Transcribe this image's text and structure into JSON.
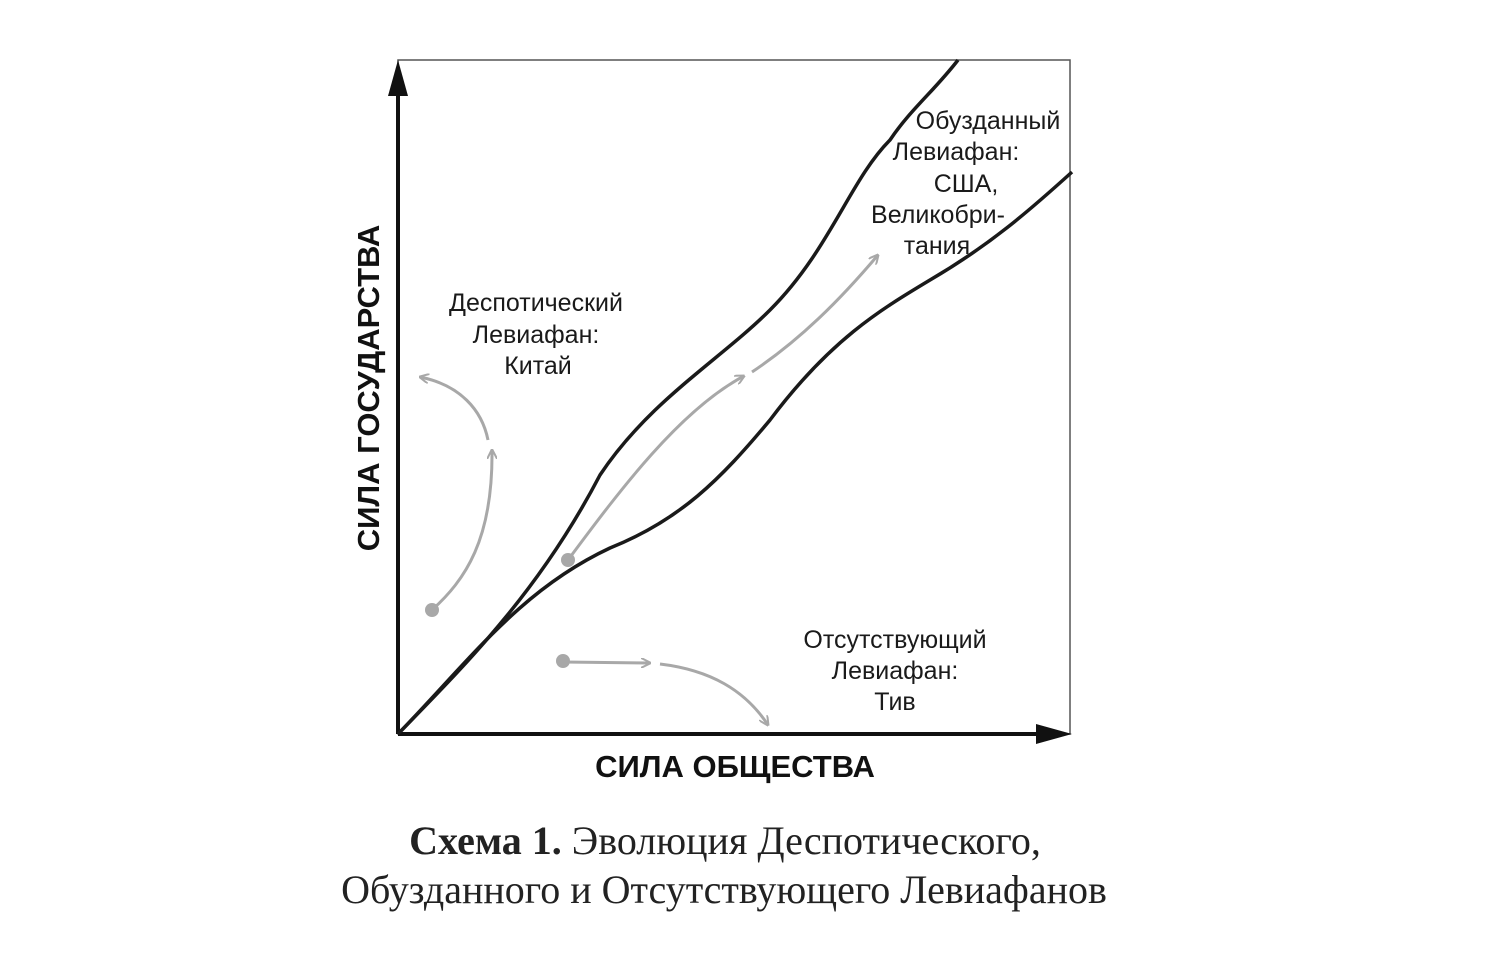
{
  "axes": {
    "x_label": "СИЛА ОБЩЕСТВА",
    "y_label": "СИЛА ГОСУДАРСТВА"
  },
  "regions": {
    "despotic": [
      "Деспотический",
      "Левиафан:",
      "Китай"
    ],
    "shackled": [
      "Обузданный",
      "Левиафан:",
      "США,",
      "Великобри-",
      "тания"
    ],
    "absent": [
      "Отсутствующий",
      "Левиафан:",
      "Тив"
    ]
  },
  "caption": {
    "number": "Схема 1.",
    "line1_rest": " Эволюция Деспотического,",
    "line2": "Обузданного и Отсутствующего Левиафанов"
  },
  "colors": {
    "axis": "#111111",
    "corridor": "#1a1a1a",
    "trajectory": "#a8a8a8"
  }
}
